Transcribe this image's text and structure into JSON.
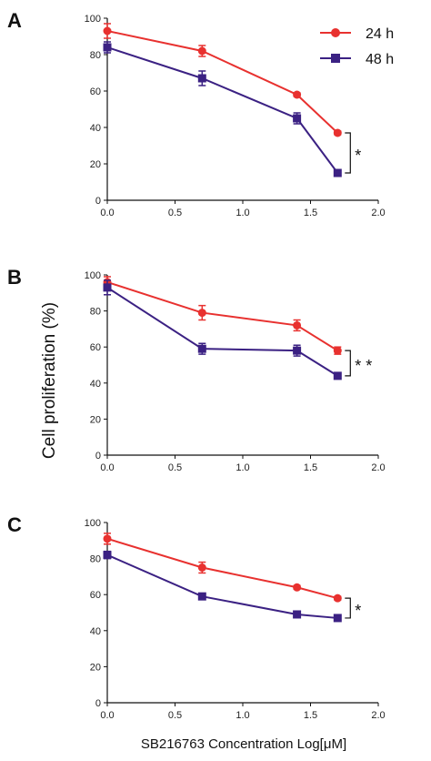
{
  "colors": {
    "h24": "#e8312f",
    "h48": "#3b2183"
  },
  "ylabel": "Cell proliferation (%)",
  "xlabel": "SB216763 Concentration Log[μM]",
  "legend": {
    "h24": "24 h",
    "h48": "48 h"
  },
  "x_ticks": [
    "0.0",
    "0.5",
    "1.0",
    "1.5",
    "2.0"
  ],
  "y_ticks": [
    "0",
    "20",
    "40",
    "60",
    "80",
    "100"
  ],
  "chart_data": [
    {
      "type": "line",
      "panel": "A",
      "x": [
        0.0,
        0.7,
        1.4,
        1.7
      ],
      "xlim": [
        0,
        2
      ],
      "ylim": [
        0,
        100
      ],
      "series": [
        {
          "name": "24 h",
          "values": [
            93,
            82,
            58,
            37
          ],
          "errors": [
            4,
            3,
            1,
            1
          ]
        },
        {
          "name": "48 h",
          "values": [
            84,
            67,
            45,
            15
          ],
          "errors": [
            3,
            4,
            3,
            1
          ]
        }
      ],
      "significance": "*"
    },
    {
      "type": "line",
      "panel": "B",
      "x": [
        0.0,
        0.7,
        1.4,
        1.7
      ],
      "xlim": [
        0,
        2
      ],
      "ylim": [
        0,
        100
      ],
      "series": [
        {
          "name": "24 h",
          "values": [
            96,
            79,
            72,
            58
          ],
          "errors": [
            3,
            4,
            3,
            2
          ]
        },
        {
          "name": "48 h",
          "values": [
            93,
            59,
            58,
            44
          ],
          "errors": [
            4,
            3,
            3,
            1
          ]
        }
      ],
      "significance": "* *"
    },
    {
      "type": "line",
      "panel": "C",
      "x": [
        0.0,
        0.7,
        1.4,
        1.7
      ],
      "xlim": [
        0,
        2
      ],
      "ylim": [
        0,
        100
      ],
      "series": [
        {
          "name": "24 h",
          "values": [
            91,
            75,
            64,
            58
          ],
          "errors": [
            3,
            3,
            1,
            1
          ]
        },
        {
          "name": "48 h",
          "values": [
            82,
            59,
            49,
            47
          ],
          "errors": [
            2,
            1,
            1,
            1
          ]
        }
      ],
      "significance": "*"
    }
  ]
}
